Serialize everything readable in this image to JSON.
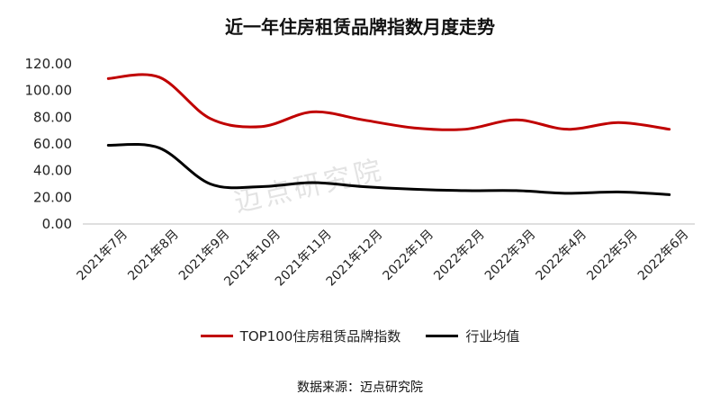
{
  "title": "近一年住房租赁品牌指数月度走势",
  "watermark": "迈点研究院",
  "source": "数据来源：迈点研究院",
  "legend": [
    {
      "name": "TOP100住房租赁品牌指数",
      "color": "#c00000"
    },
    {
      "name": "行业均值",
      "color": "#000000"
    }
  ],
  "chart_data": {
    "type": "line",
    "title": "近一年住房租赁品牌指数月度走势",
    "xlabel": "",
    "ylabel": "",
    "categories": [
      "2021年7月",
      "2021年8月",
      "2021年9月",
      "2021年10月",
      "2021年11月",
      "2021年12月",
      "2022年1月",
      "2022年2月",
      "2022年3月",
      "2022年4月",
      "2022年5月",
      "2022年6月"
    ],
    "y_ticks": [
      "0.00",
      "20.00",
      "40.00",
      "60.00",
      "80.00",
      "100.00",
      "120.00"
    ],
    "ylim": [
      0,
      120
    ],
    "grid": false,
    "legend_position": "bottom",
    "series": [
      {
        "name": "TOP100住房租赁品牌指数",
        "color": "#c00000",
        "values": [
          109,
          110,
          79,
          73,
          84,
          78,
          72,
          71,
          78,
          71,
          76,
          71
        ]
      },
      {
        "name": "行业均值",
        "color": "#000000",
        "values": [
          59,
          57,
          30,
          28,
          31,
          28,
          26,
          25,
          25,
          23,
          24,
          22
        ]
      }
    ]
  }
}
